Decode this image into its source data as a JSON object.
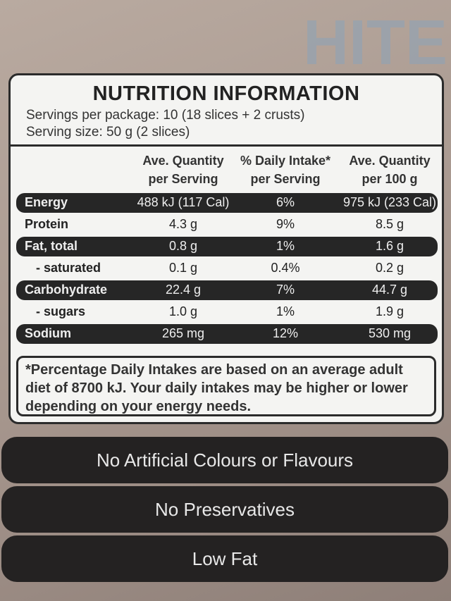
{
  "header": {
    "title": "NUTRITION INFORMATION",
    "servings_per_package": "Servings per package: 10 (18 slices + 2 crusts)",
    "serving_size": "Serving size: 50 g (2 slices)"
  },
  "table": {
    "columns": [
      [
        "Ave. Quantity",
        "per Serving"
      ],
      [
        "% Daily Intake*",
        "per Serving"
      ],
      [
        "Ave. Quantity",
        "per 100 g"
      ]
    ],
    "rows": [
      [
        "Energy",
        "488 kJ (117 Cal)",
        "6%",
        "975 kJ (233 Cal)"
      ],
      [
        "Protein",
        "4.3 g",
        "9%",
        "8.5 g"
      ],
      [
        "Fat, total",
        "0.8 g",
        "1%",
        "1.6 g"
      ],
      [
        "- saturated",
        "0.1 g",
        "0.4%",
        "0.2 g"
      ],
      [
        "Carbohydrate",
        "22.4 g",
        "7%",
        "44.7 g"
      ],
      [
        "- sugars",
        "1.0 g",
        "1%",
        "1.9 g"
      ],
      [
        "Sodium",
        "265 mg",
        "12%",
        "530 mg"
      ]
    ]
  },
  "footnote": "*Percentage Daily Intakes are based on an average adult diet of 8700 kJ. Your daily intakes may be higher or lower depending on your energy needs.",
  "badges": [
    "No Artificial Colours or Flavours",
    "No Preservatives",
    "Low Fat"
  ]
}
